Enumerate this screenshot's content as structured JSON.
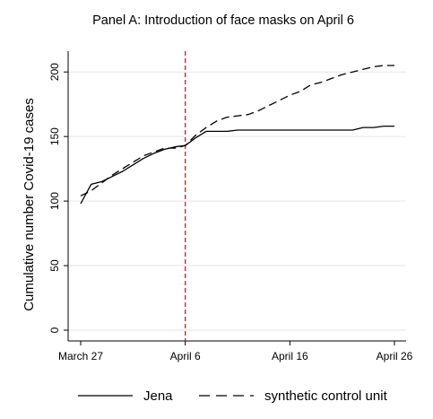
{
  "chart_data": {
    "type": "line",
    "title": "Panel A: Introduction of face masks on April 6",
    "xlabel": "",
    "ylabel": "Cumulative number Covid-19 cases",
    "xlim": [
      0,
      30
    ],
    "ylim": [
      0,
      205
    ],
    "x_ticks": [
      {
        "value": 0,
        "label": "March 27"
      },
      {
        "value": 10,
        "label": "April 6"
      },
      {
        "value": 20,
        "label": "April 16"
      },
      {
        "value": 30,
        "label": "April 26"
      }
    ],
    "y_ticks": [
      0,
      50,
      100,
      150,
      200
    ],
    "grid": "horizontal",
    "intervention": {
      "x": 10,
      "label": "April 6",
      "color": "#e0202a"
    },
    "legend_position": "bottom",
    "series": [
      {
        "name": "Jena",
        "style": "solid",
        "color": "#000000",
        "x": [
          0,
          1,
          2,
          3,
          4,
          5,
          6,
          7,
          8,
          9,
          10,
          11,
          12,
          13,
          14,
          15,
          16,
          17,
          18,
          19,
          20,
          21,
          22,
          23,
          24,
          25,
          26,
          27,
          28,
          29,
          30
        ],
        "y": [
          98,
          113,
          115,
          119,
          123,
          128,
          133,
          137,
          140,
          142,
          143,
          149,
          154,
          154,
          154,
          155,
          155,
          155,
          155,
          155,
          155,
          155,
          155,
          155,
          155,
          155,
          155,
          157,
          157,
          158,
          158
        ]
      },
      {
        "name": "synthetic control unit",
        "style": "dashed",
        "color": "#000000",
        "x": [
          0,
          1,
          2,
          3,
          4,
          5,
          6,
          7,
          8,
          9,
          10,
          11,
          12,
          13,
          14,
          15,
          16,
          17,
          18,
          19,
          20,
          21,
          22,
          23,
          24,
          25,
          26,
          27,
          28,
          29,
          30
        ],
        "y": [
          104,
          108,
          114,
          120,
          125,
          130,
          135,
          138,
          141,
          141,
          143,
          151,
          157,
          162,
          165,
          166,
          167,
          170,
          174,
          178,
          182,
          185,
          190,
          192,
          195,
          198,
          200,
          202,
          204,
          205,
          205
        ]
      }
    ]
  }
}
